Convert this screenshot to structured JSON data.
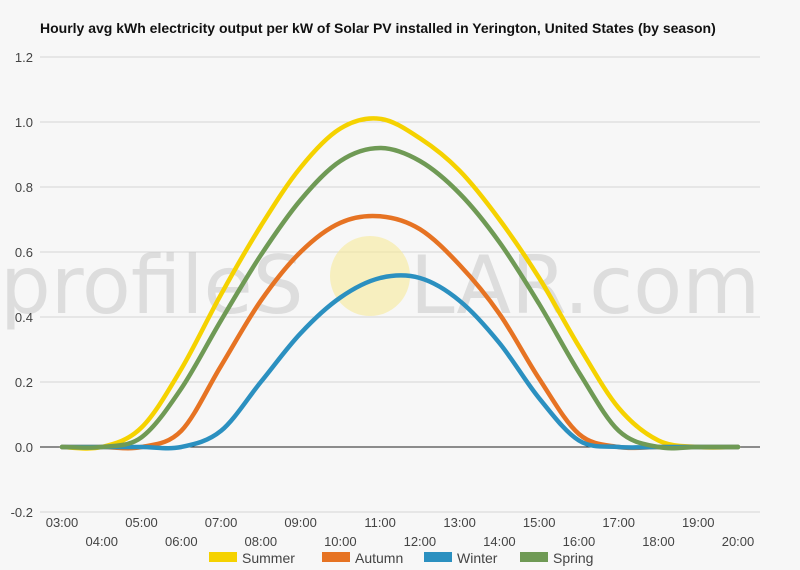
{
  "watermark": {
    "left": "profileS",
    "right": "LAR.com"
  },
  "chart_data": {
    "type": "line",
    "title": "Hourly avg kWh electricity output per kW of Solar PV installed in Yerington, United States (by season)",
    "xlabel": "",
    "ylabel": "",
    "ylim": [
      -0.2,
      1.2
    ],
    "yticks": [
      "-0.2",
      "0.0",
      "0.2",
      "0.4",
      "0.6",
      "0.8",
      "1.0",
      "1.2"
    ],
    "x": [
      "03:00",
      "04:00",
      "05:00",
      "06:00",
      "07:00",
      "08:00",
      "09:00",
      "10:00",
      "11:00",
      "12:00",
      "13:00",
      "14:00",
      "15:00",
      "16:00",
      "17:00",
      "18:00",
      "19:00",
      "20:00"
    ],
    "grid": true,
    "legend": "bottom",
    "series": [
      {
        "name": "Summer",
        "color": "#f5d200",
        "values": [
          0.0,
          0.0,
          0.06,
          0.24,
          0.47,
          0.68,
          0.86,
          0.98,
          1.01,
          0.95,
          0.85,
          0.7,
          0.52,
          0.31,
          0.12,
          0.02,
          0.0,
          0.0
        ]
      },
      {
        "name": "Autumn",
        "color": "#e67323",
        "values": [
          0.0,
          0.0,
          0.0,
          0.05,
          0.25,
          0.45,
          0.6,
          0.69,
          0.71,
          0.67,
          0.56,
          0.41,
          0.21,
          0.04,
          0.0,
          0.0,
          0.0,
          0.0
        ]
      },
      {
        "name": "Winter",
        "color": "#2b90c0",
        "values": [
          0.0,
          0.0,
          0.0,
          0.0,
          0.05,
          0.2,
          0.35,
          0.46,
          0.52,
          0.52,
          0.45,
          0.32,
          0.15,
          0.02,
          0.0,
          0.0,
          0.0,
          0.0
        ]
      },
      {
        "name": "Spring",
        "color": "#6f9a55",
        "values": [
          0.0,
          0.0,
          0.03,
          0.18,
          0.39,
          0.59,
          0.76,
          0.88,
          0.92,
          0.88,
          0.78,
          0.63,
          0.44,
          0.23,
          0.05,
          0.0,
          0.0,
          0.0
        ]
      }
    ]
  }
}
